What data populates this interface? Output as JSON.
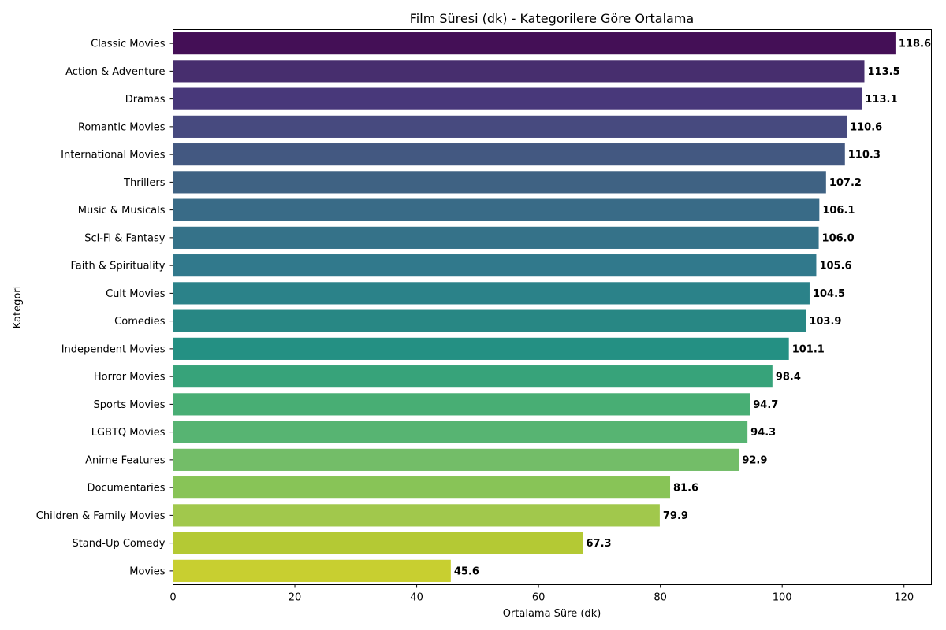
{
  "chart_data": {
    "type": "bar",
    "orientation": "horizontal",
    "title": "Film Süresi (dk) - Kategorilere Göre Ortalama",
    "xlabel": "Ortalama Süre (dk)",
    "ylabel": "Kategori",
    "xlim": [
      0,
      124.5
    ],
    "xticks": [
      0,
      20,
      40,
      60,
      80,
      100,
      120
    ],
    "categories": [
      "Classic Movies",
      "Action & Adventure",
      "Dramas",
      "Romantic Movies",
      "International Movies",
      "Thrillers",
      "Music & Musicals",
      "Sci-Fi & Fantasy",
      "Faith & Spirituality",
      "Cult Movies",
      "Comedies",
      "Independent Movies",
      "Horror Movies",
      "Sports Movies",
      "LGBTQ Movies",
      "Anime Features",
      "Documentaries",
      "Children & Family Movies",
      "Stand-Up Comedy",
      "Movies"
    ],
    "values": [
      118.6,
      113.5,
      113.1,
      110.6,
      110.3,
      107.2,
      106.1,
      106.0,
      105.6,
      104.5,
      103.9,
      101.1,
      98.4,
      94.7,
      94.3,
      92.9,
      81.6,
      79.9,
      67.3,
      45.6
    ],
    "value_labels": [
      "118.6",
      "113.5",
      "113.1",
      "110.6",
      "110.3",
      "107.2",
      "106.1",
      "106.0",
      "105.6",
      "104.5",
      "103.9",
      "101.1",
      "98.4",
      "94.7",
      "94.3",
      "92.9",
      "81.6",
      "79.9",
      "67.3",
      "45.6"
    ],
    "colors": [
      "#440f56",
      "#472e6e",
      "#48387a",
      "#474a7f",
      "#435881",
      "#3f6283",
      "#396b87",
      "#357289",
      "#31798c",
      "#2b8289",
      "#288784",
      "#249083",
      "#37a37a",
      "#48ae74",
      "#57b472",
      "#73bd68",
      "#88c457",
      "#a1c84c",
      "#b4c934",
      "#c8cf30"
    ],
    "grid": false,
    "legend": "none"
  }
}
